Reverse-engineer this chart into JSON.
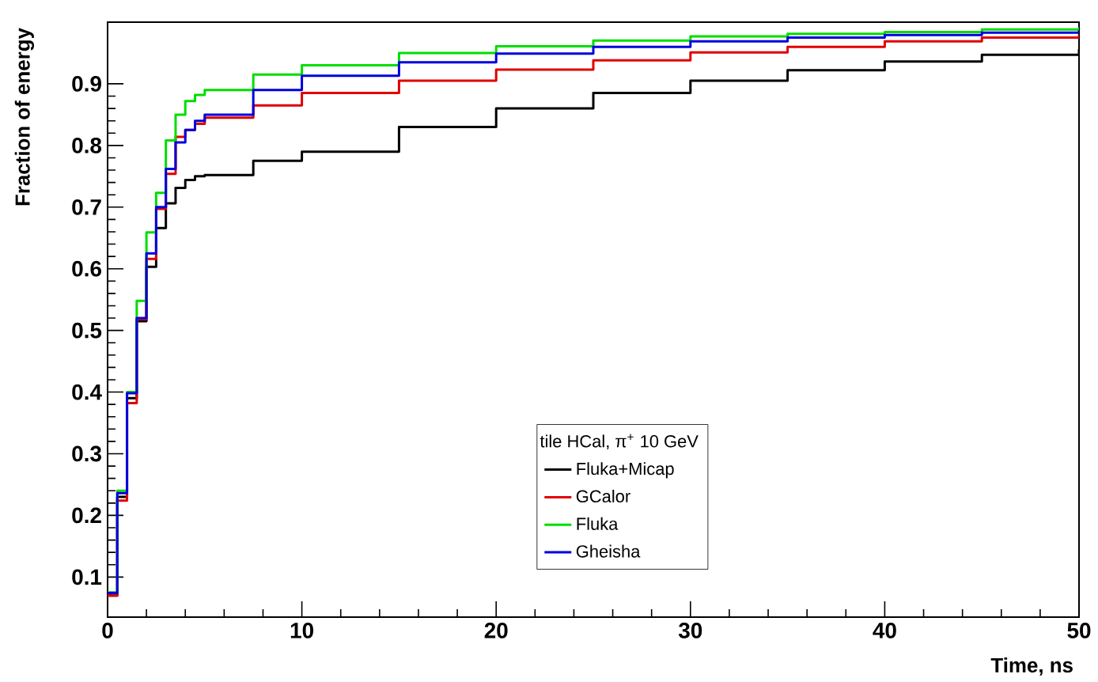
{
  "chart_data": {
    "type": "step",
    "xlabel": "Time, ns",
    "ylabel": "Fraction of energy",
    "legend_title": "tile HCal, π$^{+}$ 10 GeV",
    "x": [
      0,
      0.5,
      1,
      1.5,
      2,
      2.5,
      3,
      3.5,
      4,
      4.5,
      5,
      7.5,
      10,
      15,
      20,
      25,
      30,
      35,
      40,
      45,
      50
    ],
    "series": [
      {
        "name": "Fluka+Micap",
        "color": "#000000",
        "values": [
          0.07,
          0.23,
          0.39,
          0.515,
          0.603,
          0.666,
          0.706,
          0.731,
          0.744,
          0.75,
          0.752,
          0.775,
          0.79,
          0.83,
          0.86,
          0.885,
          0.905,
          0.922,
          0.936,
          0.947,
          0.956
        ]
      },
      {
        "name": "GCalor",
        "color": "#e00000",
        "values": [
          0.07,
          0.224,
          0.382,
          0.518,
          0.616,
          0.697,
          0.754,
          0.814,
          0.825,
          0.835,
          0.845,
          0.865,
          0.885,
          0.905,
          0.923,
          0.938,
          0.951,
          0.96,
          0.969,
          0.975,
          0.98
        ]
      },
      {
        "name": "Fluka",
        "color": "#00dd00",
        "values": [
          0.075,
          0.24,
          0.4,
          0.548,
          0.659,
          0.723,
          0.808,
          0.85,
          0.872,
          0.882,
          0.89,
          0.915,
          0.93,
          0.95,
          0.961,
          0.97,
          0.977,
          0.981,
          0.984,
          0.988,
          0.992
        ]
      },
      {
        "name": "Gheisha",
        "color": "#0000dd",
        "values": [
          0.074,
          0.236,
          0.398,
          0.52,
          0.625,
          0.7,
          0.762,
          0.805,
          0.825,
          0.84,
          0.85,
          0.89,
          0.913,
          0.935,
          0.949,
          0.96,
          0.969,
          0.975,
          0.979,
          0.983,
          0.987
        ]
      }
    ],
    "xlim": [
      0,
      50
    ],
    "ylim": [
      0.035,
      1.0
    ],
    "xticks": [
      0,
      10,
      20,
      30,
      40,
      50
    ],
    "yticks": [
      0.1,
      0.2,
      0.3,
      0.4,
      0.5,
      0.6,
      0.7,
      0.8,
      0.9
    ],
    "legend": "bottom",
    "line_style": "solid",
    "marker": "none"
  }
}
